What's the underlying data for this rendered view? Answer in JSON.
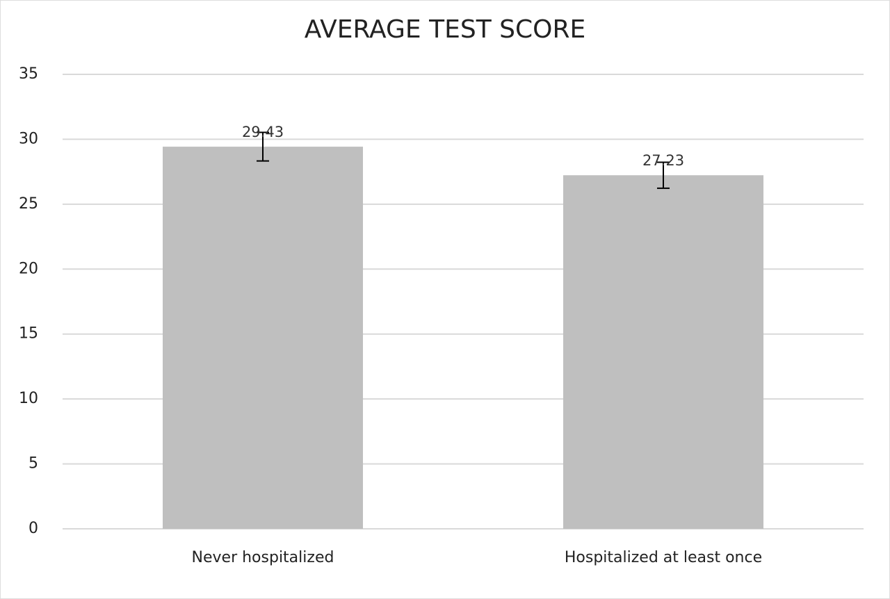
{
  "chart_data": {
    "type": "bar",
    "title": "AVERAGE TEST SCORE",
    "categories": [
      "Never hospitalized",
      "Hospitalized at least once"
    ],
    "values": [
      29.43,
      27.23
    ],
    "errors": [
      1.1,
      1.0
    ],
    "color": "#bfbfbf",
    "ylim": [
      0,
      35
    ],
    "yticks": [
      0,
      5,
      10,
      15,
      20,
      25,
      30,
      35
    ],
    "grid": true
  }
}
